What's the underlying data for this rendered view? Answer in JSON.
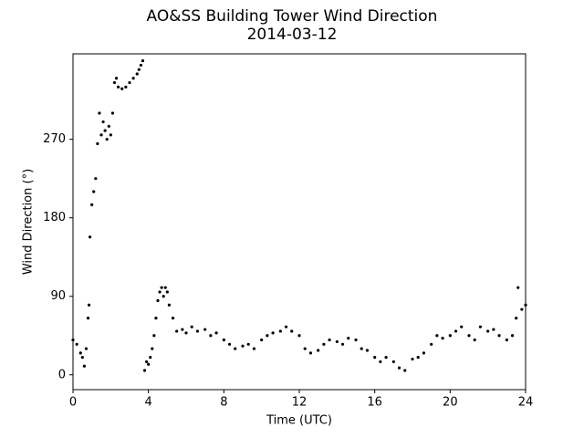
{
  "chart_data": {
    "type": "scatter",
    "title": "AO&SS Building Tower Wind Direction",
    "subtitle": "2014-03-12",
    "x_label": "Time (UTC)",
    "y_label": "Wind Direction (°)",
    "color": "#000000",
    "xlim": [
      0,
      24
    ],
    "xticks": [
      0,
      4,
      8,
      12,
      16,
      20,
      24
    ],
    "ylim": [
      -17,
      368
    ],
    "yticks": [
      0,
      90,
      180,
      270
    ],
    "x": [
      0.0,
      0.2,
      0.4,
      0.5,
      0.6,
      0.7,
      0.8,
      0.85,
      0.9,
      1.0,
      1.1,
      1.2,
      1.3,
      1.4,
      1.5,
      1.6,
      1.7,
      1.8,
      1.9,
      2.0,
      2.1,
      2.2,
      2.3,
      2.4,
      2.6,
      2.8,
      3.0,
      3.2,
      3.4,
      3.5,
      3.6,
      3.7,
      3.8,
      3.9,
      4.0,
      4.1,
      4.2,
      4.3,
      4.4,
      4.5,
      4.6,
      4.7,
      4.8,
      4.9,
      5.0,
      5.1,
      5.3,
      5.5,
      5.8,
      6.0,
      6.3,
      6.6,
      7.0,
      7.3,
      7.6,
      8.0,
      8.3,
      8.6,
      9.0,
      9.3,
      9.6,
      10.0,
      10.3,
      10.6,
      11.0,
      11.3,
      11.6,
      12.0,
      12.3,
      12.6,
      13.0,
      13.3,
      13.6,
      14.0,
      14.3,
      14.6,
      15.0,
      15.3,
      15.6,
      16.0,
      16.3,
      16.6,
      17.0,
      17.3,
      17.6,
      18.0,
      18.3,
      18.6,
      19.0,
      19.3,
      19.6,
      20.0,
      20.3,
      20.6,
      21.0,
      21.3,
      21.6,
      22.0,
      22.3,
      22.6,
      23.0,
      23.3,
      23.5,
      23.6,
      23.8,
      24.0
    ],
    "values": [
      40,
      35,
      25,
      20,
      10,
      30,
      65,
      80,
      158,
      195,
      210,
      225,
      265,
      300,
      275,
      290,
      280,
      270,
      285,
      275,
      300,
      335,
      340,
      330,
      328,
      330,
      335,
      340,
      345,
      350,
      355,
      360,
      5,
      15,
      12,
      20,
      30,
      45,
      65,
      85,
      95,
      100,
      90,
      100,
      95,
      80,
      65,
      50,
      52,
      48,
      55,
      50,
      52,
      45,
      48,
      40,
      35,
      30,
      33,
      35,
      30,
      40,
      45,
      48,
      50,
      55,
      50,
      45,
      30,
      25,
      28,
      35,
      40,
      38,
      35,
      42,
      40,
      30,
      28,
      20,
      15,
      20,
      15,
      8,
      5,
      18,
      20,
      25,
      35,
      45,
      42,
      45,
      50,
      55,
      45,
      40,
      55,
      50,
      52,
      45,
      40,
      45,
      65,
      100,
      75,
      80
    ]
  }
}
